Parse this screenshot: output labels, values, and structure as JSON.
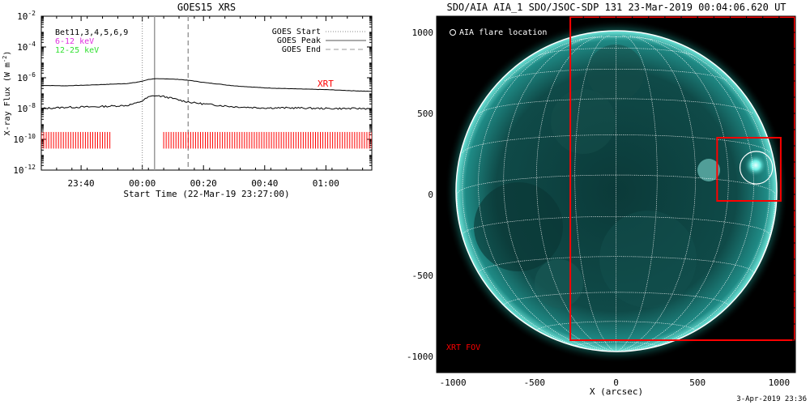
{
  "timestamp": "3-Apr-2019 23:36",
  "chart_data": [
    {
      "type": "line",
      "title": "GOES15 XRS",
      "xlabel": "Start Time (22-Mar-19 23:27:00)",
      "ylabel": "X-ray Flux (W m",
      "ylabel_exp": "-2",
      "ylabel_close": ")",
      "y_scale": "log",
      "xlim": [
        "23:27",
        "01:15"
      ],
      "ylim": [
        1e-12,
        0.01
      ],
      "x_ticks": [
        {
          "label": "23:40",
          "value": "23:40"
        },
        {
          "label": "00:00",
          "value": "00:00"
        },
        {
          "label": "00:20",
          "value": "00:20"
        },
        {
          "label": "00:40",
          "value": "00:40"
        },
        {
          "label": "01:00",
          "value": "01:00"
        }
      ],
      "y_ticks": [
        {
          "mantissa": "10",
          "exp": "-2"
        },
        {
          "mantissa": "10",
          "exp": "-4"
        },
        {
          "mantissa": "10",
          "exp": "-6"
        },
        {
          "mantissa": "10",
          "exp": "-8"
        },
        {
          "mantissa": "10",
          "exp": "-10"
        },
        {
          "mantissa": "10",
          "exp": "-12"
        }
      ],
      "bands_label": "Bet11,3,4,5,6,9",
      "band_labels": [
        {
          "text": "6-12 keV",
          "color": "#e030e0"
        },
        {
          "text": "12-25 keV",
          "color": "#30e030"
        }
      ],
      "legend": {
        "placement": "top-right",
        "entries": [
          {
            "label": "GOES Start",
            "style": "dotted"
          },
          {
            "label": "GOES Peak",
            "style": "solid"
          },
          {
            "label": "GOES End",
            "style": "dashed"
          }
        ]
      },
      "events": {
        "start": "00:00",
        "peak": "00:04",
        "end": "00:15"
      },
      "series": [
        {
          "x": [
            "23:27",
            "23:35",
            "23:45",
            "23:55",
            "23:58",
            "00:00",
            "00:02",
            "00:04",
            "00:07",
            "00:10",
            "00:13",
            "00:16",
            "00:20",
            "00:30",
            "00:40",
            "00:50",
            "01:00",
            "01:10",
            "01:15"
          ],
          "y": [
            3.2e-07,
            3e-07,
            3.5e-07,
            4.2e-07,
            5e-07,
            6e-07,
            7.8e-07,
            8.5e-07,
            8.6e-07,
            8.2e-07,
            7.5e-07,
            6.5e-07,
            5e-07,
            3e-07,
            2.2e-07,
            1.9e-07,
            1.7e-07,
            1.4e-07,
            1.3e-07
          ]
        },
        {
          "x": [
            "23:27",
            "23:35",
            "23:45",
            "23:55",
            "23:58",
            "00:00",
            "00:02",
            "00:04",
            "00:07",
            "00:10",
            "00:13",
            "00:16",
            "00:20",
            "00:30",
            "00:40",
            "00:50",
            "01:00",
            "01:10",
            "01:15"
          ],
          "y": [
            1e-08,
            1.2e-08,
            1.3e-08,
            1.6e-08,
            2.2e-08,
            3.2e-08,
            5.5e-08,
            7e-08,
            6e-08,
            4.5e-08,
            3.2e-08,
            2.5e-08,
            2e-08,
            1.3e-08,
            1.1e-08,
            1.1e-08,
            1e-08,
            1e-08,
            1e-08
          ]
        }
      ],
      "xrt_label": "XRT",
      "xrt_color": "#ff0000",
      "xrt_coverage": [
        {
          "start": "23:27",
          "end": "23:50"
        },
        {
          "start": "00:07",
          "end": "01:15"
        }
      ]
    },
    {
      "type": "scatter",
      "title": "SDO/AIA AIA_1 SDO/JSOC-SDP 131 23-Mar-2019 00:04:06.620 UT",
      "xlabel": "X (arcsec)",
      "ylabel": "",
      "xlim": [
        -1100,
        1100
      ],
      "ylim": [
        -1100,
        1100
      ],
      "x_ticks": [
        {
          "label": "-1000",
          "value": -1000
        },
        {
          "label": "-500",
          "value": -500
        },
        {
          "label": "0",
          "value": 0
        },
        {
          "label": "500",
          "value": 500
        },
        {
          "label": "1000",
          "value": 1000
        }
      ],
      "y_ticks": [
        {
          "label": "1000",
          "value": 1000
        },
        {
          "label": "500",
          "value": 500
        },
        {
          "label": "0",
          "value": 0
        },
        {
          "label": "-500",
          "value": -500
        },
        {
          "label": "-1000",
          "value": -1000
        }
      ],
      "grid": true,
      "solar_radius_arcsec": 975,
      "flare_location_label": "AIA flare location",
      "flare_location": {
        "x": 860,
        "y": 165,
        "radius": 100
      },
      "xrt_fov_label": "XRT FOV",
      "xrt_fov": {
        "x0": -280,
        "x1": 1100,
        "y0": -900,
        "y1": 1100
      },
      "xrt_inner_box": {
        "x0": 620,
        "x1": 1010,
        "y0": -40,
        "y1": 350
      },
      "xrt_color": "#ff0000"
    }
  ]
}
